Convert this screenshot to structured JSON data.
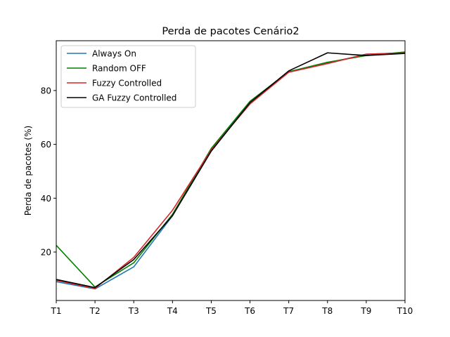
{
  "chart_data": {
    "type": "line",
    "title": "Perda de pacotes Cenário2",
    "xlabel": "",
    "ylabel": "Perda de pacotes (%)",
    "categories": [
      "T1",
      "T2",
      "T3",
      "T4",
      "T5",
      "T6",
      "T7",
      "T8",
      "T9",
      "T10"
    ],
    "yticks": [
      20,
      40,
      60,
      80
    ],
    "ylim": [
      2,
      98.5
    ],
    "grid": false,
    "legend_position": "top-left",
    "series": [
      {
        "name": "Always On",
        "color": "#1f77b4",
        "values": [
          9.0,
          6.3,
          14.5,
          33.5,
          58.0,
          75.5,
          86.8,
          90.2,
          93.5,
          94.0
        ]
      },
      {
        "name": "Random OFF",
        "color": "#008000",
        "values": [
          22.5,
          7.0,
          16.0,
          34.0,
          58.5,
          76.0,
          87.0,
          90.5,
          93.0,
          94.3
        ]
      },
      {
        "name": "Fuzzy Controlled",
        "color": "#d62728",
        "values": [
          9.5,
          6.5,
          18.0,
          35.5,
          58.0,
          75.0,
          86.8,
          90.0,
          93.5,
          94.0
        ]
      },
      {
        "name": "GA Fuzzy Controlled",
        "color": "#000000",
        "values": [
          9.8,
          6.8,
          17.2,
          33.5,
          57.5,
          75.5,
          87.3,
          94.0,
          93.0,
          93.8
        ]
      }
    ]
  }
}
